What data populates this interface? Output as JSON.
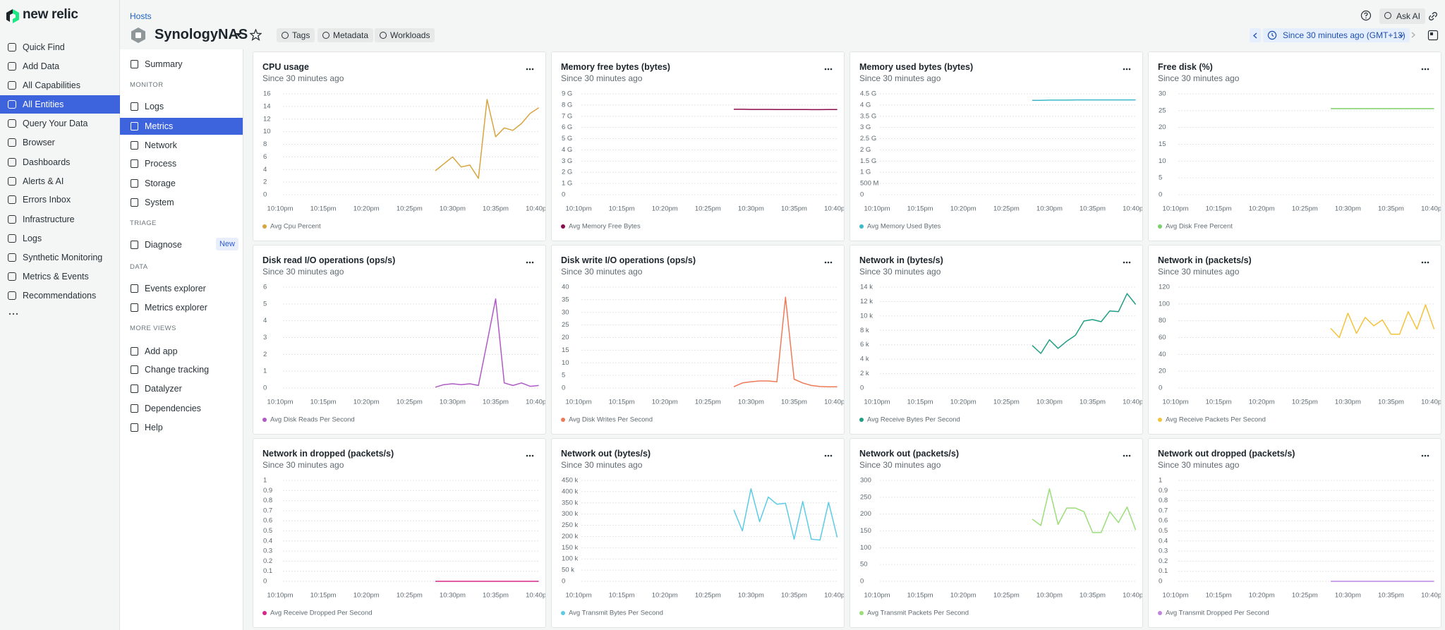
{
  "nav": {
    "logo": "new relic",
    "items": [
      "Quick Find",
      "Add Data",
      "All Capabilities",
      "All Entities",
      "Query Your Data",
      "Browser",
      "Dashboards",
      "Alerts & AI",
      "Errors Inbox",
      "Infrastructure",
      "Logs",
      "Synthetic Monitoring",
      "Metrics & Events",
      "Recommendations"
    ]
  },
  "header": {
    "breadcrumb": "Hosts",
    "entity": "SynologyNAS",
    "buttons": [
      "Tags",
      "Metadata",
      "Workloads"
    ],
    "ask_ai": "Ask AI",
    "time_range": "Since 30 minutes ago (GMT+13)"
  },
  "sidebar": {
    "summary": "Summary",
    "sections": [
      {
        "heading": "MONITOR",
        "items": [
          "Logs",
          "Metrics",
          "Network",
          "Process",
          "Storage",
          "System"
        ]
      },
      {
        "heading": "TRIAGE",
        "items": [
          "Diagnose"
        ],
        "badge": "New"
      },
      {
        "heading": "DATA",
        "items": [
          "Events explorer",
          "Metrics explorer"
        ]
      },
      {
        "heading": "MORE VIEWS",
        "items": [
          "Add app",
          "Change tracking",
          "Datalyzer",
          "Dependencies",
          "Help"
        ]
      }
    ]
  },
  "chart_data": [
    {
      "type": "line",
      "title": "CPU usage",
      "subtitle": "Since 30 minutes ago",
      "x": [
        "10:28pm",
        "10:29pm",
        "10:30pm",
        "10:31pm",
        "10:32pm",
        "10:33pm",
        "10:34pm",
        "10:35pm",
        "10:36pm",
        "10:37pm",
        "10:38pm",
        "10:39pm",
        "10:40pm"
      ],
      "xlim": [
        "10:08pm",
        "10:40pm"
      ],
      "xticks": [
        "10:10pm",
        "10:15pm",
        "10:20pm",
        "10:25pm",
        "10:30pm",
        "10:35pm",
        "10:40pm"
      ],
      "ylim": [
        0,
        16
      ],
      "yticks": [
        0,
        2,
        4,
        6,
        8,
        10,
        12,
        14,
        16
      ],
      "grid": true,
      "series": [
        {
          "name": "Avg Cpu Percent",
          "color": "#d6a53f",
          "values": [
            3.8,
            4.9,
            6.0,
            4.4,
            4.7,
            2.6,
            15.1,
            9.2,
            10.6,
            10.2,
            11.3,
            12.9,
            13.8
          ]
        }
      ]
    },
    {
      "type": "line",
      "title": "Memory free bytes (bytes)",
      "subtitle": "Since 30 minutes ago",
      "x": [
        "10:28pm",
        "10:29pm",
        "10:30pm",
        "10:31pm",
        "10:32pm",
        "10:33pm",
        "10:34pm",
        "10:35pm",
        "10:36pm",
        "10:37pm",
        "10:38pm",
        "10:39pm",
        "10:40pm"
      ],
      "xlim": [
        "10:08pm",
        "10:40pm"
      ],
      "xticks": [
        "10:10pm",
        "10:15pm",
        "10:20pm",
        "10:25pm",
        "10:30pm",
        "10:35pm",
        "10:40pm"
      ],
      "ylim": [
        0,
        9000000000
      ],
      "yticks": [
        0,
        {
          "value": 1000000000,
          "label": "1 G"
        },
        {
          "value": 2000000000,
          "label": "2 G"
        },
        {
          "value": 3000000000,
          "label": "3 G"
        },
        {
          "value": 4000000000,
          "label": "4 G"
        },
        {
          "value": 5000000000,
          "label": "5 G"
        },
        {
          "value": 6000000000,
          "label": "6 G"
        },
        {
          "value": 7000000000,
          "label": "7 G"
        },
        {
          "value": 8000000000,
          "label": "8 G"
        },
        {
          "value": 9000000000,
          "label": "9 G"
        }
      ],
      "grid": true,
      "series": [
        {
          "name": "Avg Memory Free Bytes",
          "color": "#8c0b4b",
          "values": [
            7620000000,
            7620000000,
            7610000000,
            7610000000,
            7610000000,
            7600000000,
            7600000000,
            7600000000,
            7600000000,
            7590000000,
            7590000000,
            7600000000,
            7600000000
          ]
        }
      ]
    },
    {
      "type": "line",
      "title": "Memory used bytes (bytes)",
      "subtitle": "Since 30 minutes ago",
      "x": [
        "10:28pm",
        "10:29pm",
        "10:30pm",
        "10:31pm",
        "10:32pm",
        "10:33pm",
        "10:34pm",
        "10:35pm",
        "10:36pm",
        "10:37pm",
        "10:38pm",
        "10:39pm",
        "10:40pm"
      ],
      "xlim": [
        "10:08pm",
        "10:40pm"
      ],
      "xticks": [
        "10:10pm",
        "10:15pm",
        "10:20pm",
        "10:25pm",
        "10:30pm",
        "10:35pm",
        "10:40pm"
      ],
      "ylim": [
        0,
        4500000000
      ],
      "yticks": [
        0,
        {
          "value": 500000000,
          "label": "500 M"
        },
        {
          "value": 1000000000,
          "label": "1 G"
        },
        {
          "value": 1500000000,
          "label": "1.5 G"
        },
        {
          "value": 2000000000,
          "label": "2 G"
        },
        {
          "value": 2500000000,
          "label": "2.5 G"
        },
        {
          "value": 3000000000,
          "label": "3 G"
        },
        {
          "value": 3500000000,
          "label": "3.5 G"
        },
        {
          "value": 4000000000,
          "label": "4 G"
        },
        {
          "value": 4500000000,
          "label": "4.5 G"
        }
      ],
      "grid": true,
      "series": [
        {
          "name": "Avg Memory Used Bytes",
          "color": "#3cb8c9",
          "values": [
            4210000000,
            4210000000,
            4220000000,
            4220000000,
            4220000000,
            4230000000,
            4230000000,
            4230000000,
            4230000000,
            4230000000,
            4230000000,
            4230000000,
            4230000000
          ]
        }
      ]
    },
    {
      "type": "line",
      "title": "Free disk (%)",
      "subtitle": "Since 30 minutes ago",
      "x": [
        "10:28pm",
        "10:29pm",
        "10:30pm",
        "10:31pm",
        "10:32pm",
        "10:33pm",
        "10:34pm",
        "10:35pm",
        "10:36pm",
        "10:37pm",
        "10:38pm",
        "10:39pm",
        "10:40pm"
      ],
      "xlim": [
        "10:08pm",
        "10:40pm"
      ],
      "xticks": [
        "10:10pm",
        "10:15pm",
        "10:20pm",
        "10:25pm",
        "10:30pm",
        "10:35pm",
        "10:40pm"
      ],
      "ylim": [
        0,
        30
      ],
      "yticks": [
        0,
        5,
        10,
        15,
        20,
        25,
        30
      ],
      "grid": true,
      "series": [
        {
          "name": "Avg Disk Free Percent",
          "color": "#7ccf6a",
          "values": [
            25.6,
            25.6,
            25.6,
            25.6,
            25.6,
            25.6,
            25.6,
            25.6,
            25.6,
            25.6,
            25.6,
            25.6,
            25.6
          ]
        }
      ]
    },
    {
      "type": "line",
      "title": "Disk read I/O operations (ops/s)",
      "subtitle": "Since 30 minutes ago",
      "x": [
        "10:28pm",
        "10:29pm",
        "10:30pm",
        "10:31pm",
        "10:32pm",
        "10:33pm",
        "10:34pm",
        "10:35pm",
        "10:36pm",
        "10:37pm",
        "10:38pm",
        "10:39pm",
        "10:40pm"
      ],
      "xlim": [
        "10:08pm",
        "10:40pm"
      ],
      "xticks": [
        "10:10pm",
        "10:15pm",
        "10:20pm",
        "10:25pm",
        "10:30pm",
        "10:35pm",
        "10:40pm"
      ],
      "ylim": [
        0,
        6
      ],
      "yticks": [
        0,
        1,
        2,
        3,
        4,
        5,
        6
      ],
      "grid": true,
      "series": [
        {
          "name": "Avg Disk Reads Per Second",
          "color": "#b05ac6",
          "values": [
            0.05,
            0.2,
            0.25,
            0.2,
            0.25,
            0.15,
            2.7,
            5.3,
            0.3,
            0.15,
            0.3,
            0.1,
            0.15
          ]
        }
      ]
    },
    {
      "type": "line",
      "title": "Disk write I/O operations (ops/s)",
      "subtitle": "Since 30 minutes ago",
      "x": [
        "10:28pm",
        "10:29pm",
        "10:30pm",
        "10:31pm",
        "10:32pm",
        "10:33pm",
        "10:34pm",
        "10:35pm",
        "10:36pm",
        "10:37pm",
        "10:38pm",
        "10:39pm",
        "10:40pm"
      ],
      "xlim": [
        "10:08pm",
        "10:40pm"
      ],
      "xticks": [
        "10:10pm",
        "10:15pm",
        "10:20pm",
        "10:25pm",
        "10:30pm",
        "10:35pm",
        "10:40pm"
      ],
      "ylim": [
        0,
        40
      ],
      "yticks": [
        0,
        5,
        10,
        15,
        20,
        25,
        30,
        35,
        40
      ],
      "grid": true,
      "series": [
        {
          "name": "Avg Disk Writes Per Second",
          "color": "#ee7a58",
          "values": [
            0.5,
            2,
            2.5,
            2.8,
            2.8,
            2.5,
            36,
            3.5,
            2,
            1,
            0.6,
            0.5,
            0.5
          ]
        }
      ]
    },
    {
      "type": "line",
      "title": "Network in (bytes/s)",
      "subtitle": "Since 30 minutes ago",
      "x": [
        "10:28pm",
        "10:29pm",
        "10:30pm",
        "10:31pm",
        "10:32pm",
        "10:33pm",
        "10:34pm",
        "10:35pm",
        "10:36pm",
        "10:37pm",
        "10:38pm",
        "10:39pm",
        "10:40pm"
      ],
      "xlim": [
        "10:08pm",
        "10:40pm"
      ],
      "xticks": [
        "10:10pm",
        "10:15pm",
        "10:20pm",
        "10:25pm",
        "10:30pm",
        "10:35pm",
        "10:40pm"
      ],
      "ylim": [
        0,
        14000
      ],
      "yticks": [
        0,
        {
          "value": 2000,
          "label": "2 k"
        },
        {
          "value": 4000,
          "label": "4 k"
        },
        {
          "value": 6000,
          "label": "6 k"
        },
        {
          "value": 8000,
          "label": "8 k"
        },
        {
          "value": 10000,
          "label": "10 k"
        },
        {
          "value": 12000,
          "label": "12 k"
        },
        {
          "value": 14000,
          "label": "14 k"
        }
      ],
      "grid": true,
      "series": [
        {
          "name": "Avg Receive Bytes Per Second",
          "color": "#1f9e84",
          "values": [
            5900,
            4800,
            6700,
            5500,
            6500,
            7300,
            9300,
            9500,
            9200,
            10700,
            10600,
            13100,
            11600
          ]
        }
      ]
    },
    {
      "type": "line",
      "title": "Network in (packets/s)",
      "subtitle": "Since 30 minutes ago",
      "x": [
        "10:28pm",
        "10:29pm",
        "10:30pm",
        "10:31pm",
        "10:32pm",
        "10:33pm",
        "10:34pm",
        "10:35pm",
        "10:36pm",
        "10:37pm",
        "10:38pm",
        "10:39pm",
        "10:40pm"
      ],
      "xlim": [
        "10:08pm",
        "10:40pm"
      ],
      "xticks": [
        "10:10pm",
        "10:15pm",
        "10:20pm",
        "10:25pm",
        "10:30pm",
        "10:35pm",
        "10:40pm"
      ],
      "ylim": [
        0,
        120
      ],
      "yticks": [
        0,
        20,
        40,
        60,
        80,
        100,
        120
      ],
      "grid": true,
      "series": [
        {
          "name": "Avg Receive Packets Per Second",
          "color": "#f4c33a",
          "values": [
            71,
            60,
            89,
            65,
            84,
            74,
            81,
            64,
            64,
            91,
            70,
            99,
            70
          ]
        }
      ]
    },
    {
      "type": "line",
      "title": "Network in dropped (packets/s)",
      "subtitle": "Since 30 minutes ago",
      "x": [
        "10:28pm",
        "10:29pm",
        "10:30pm",
        "10:31pm",
        "10:32pm",
        "10:33pm",
        "10:34pm",
        "10:35pm",
        "10:36pm",
        "10:37pm",
        "10:38pm",
        "10:39pm",
        "10:40pm"
      ],
      "xlim": [
        "10:08pm",
        "10:40pm"
      ],
      "xticks": [
        "10:10pm",
        "10:15pm",
        "10:20pm",
        "10:25pm",
        "10:30pm",
        "10:35pm",
        "10:40pm"
      ],
      "ylim": [
        0,
        1
      ],
      "yticks": [
        0,
        0.1,
        0.2,
        0.3,
        0.4,
        0.5,
        0.6,
        0.7,
        0.8,
        0.9,
        1
      ],
      "grid": true,
      "series": [
        {
          "name": "Avg Receive Dropped Per Second",
          "color": "#d4278b",
          "values": [
            0,
            0,
            0,
            0,
            0,
            0,
            0,
            0,
            0,
            0,
            0,
            0,
            0
          ]
        }
      ]
    },
    {
      "type": "line",
      "title": "Network out (bytes/s)",
      "subtitle": "Since 30 minutes ago",
      "x": [
        "10:28pm",
        "10:29pm",
        "10:30pm",
        "10:31pm",
        "10:32pm",
        "10:33pm",
        "10:34pm",
        "10:35pm",
        "10:36pm",
        "10:37pm",
        "10:38pm",
        "10:39pm",
        "10:40pm"
      ],
      "xlim": [
        "10:08pm",
        "10:40pm"
      ],
      "xticks": [
        "10:10pm",
        "10:15pm",
        "10:20pm",
        "10:25pm",
        "10:30pm",
        "10:35pm",
        "10:40pm"
      ],
      "ylim": [
        0,
        450000
      ],
      "yticks": [
        0,
        {
          "value": 50000,
          "label": "50 k"
        },
        {
          "value": 100000,
          "label": "100 k"
        },
        {
          "value": 150000,
          "label": "150 k"
        },
        {
          "value": 200000,
          "label": "200 k"
        },
        {
          "value": 250000,
          "label": "250 k"
        },
        {
          "value": 300000,
          "label": "300 k"
        },
        {
          "value": 350000,
          "label": "350 k"
        },
        {
          "value": 400000,
          "label": "400 k"
        },
        {
          "value": 450000,
          "label": "450 k"
        }
      ],
      "grid": true,
      "series": [
        {
          "name": "Avg Transmit Bytes Per Second",
          "color": "#5ccbe6",
          "values": [
            319000,
            225000,
            413000,
            266000,
            376000,
            344000,
            348000,
            188000,
            356000,
            188000,
            184000,
            352000,
            196000
          ]
        }
      ]
    },
    {
      "type": "line",
      "title": "Network out (packets/s)",
      "subtitle": "Since 30 minutes ago",
      "x": [
        "10:28pm",
        "10:29pm",
        "10:30pm",
        "10:31pm",
        "10:32pm",
        "10:33pm",
        "10:34pm",
        "10:35pm",
        "10:36pm",
        "10:37pm",
        "10:38pm",
        "10:39pm",
        "10:40pm"
      ],
      "xlim": [
        "10:08pm",
        "10:40pm"
      ],
      "xticks": [
        "10:10pm",
        "10:15pm",
        "10:20pm",
        "10:25pm",
        "10:30pm",
        "10:35pm",
        "10:40pm"
      ],
      "ylim": [
        0,
        300
      ],
      "yticks": [
        0,
        50,
        100,
        150,
        200,
        250,
        300
      ],
      "grid": true,
      "series": [
        {
          "name": "Avg Transmit Packets Per Second",
          "color": "#9ade7a",
          "values": [
            185,
            166,
            275,
            169,
            218,
            218,
            207,
            145,
            145,
            207,
            175,
            221,
            153
          ]
        }
      ]
    },
    {
      "type": "line",
      "title": "Network out dropped (packets/s)",
      "subtitle": "Since 30 minutes ago",
      "x": [
        "10:28pm",
        "10:29pm",
        "10:30pm",
        "10:31pm",
        "10:32pm",
        "10:33pm",
        "10:34pm",
        "10:35pm",
        "10:36pm",
        "10:37pm",
        "10:38pm",
        "10:39pm",
        "10:40pm"
      ],
      "xlim": [
        "10:08pm",
        "10:40pm"
      ],
      "xticks": [
        "10:10pm",
        "10:15pm",
        "10:20pm",
        "10:25pm",
        "10:30pm",
        "10:35pm",
        "10:40pm"
      ],
      "ylim": [
        0,
        1
      ],
      "yticks": [
        0,
        0.1,
        0.2,
        0.3,
        0.4,
        0.5,
        0.6,
        0.7,
        0.8,
        0.9,
        1
      ],
      "grid": true,
      "series": [
        {
          "name": "Avg Transmit Dropped Per Second",
          "color": "#c084df",
          "values": [
            0,
            0,
            0,
            0,
            0,
            0,
            0,
            0,
            0,
            0,
            0,
            0,
            0
          ]
        }
      ]
    }
  ]
}
